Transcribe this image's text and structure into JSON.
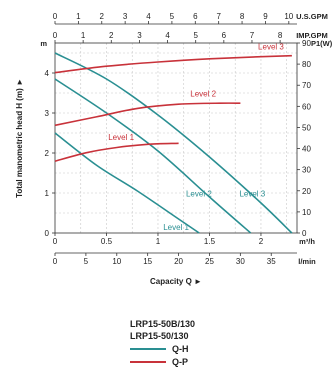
{
  "chart_data": {
    "type": "line",
    "axes": {
      "capacity_m3h": {
        "unit": "m³/h",
        "ticks": [
          "0",
          "0.5",
          "1",
          "1.5",
          "2"
        ],
        "range": [
          0,
          2.35
        ]
      },
      "capacity_lmin": {
        "unit": "l/min",
        "ticks": [
          "0",
          "5",
          "10",
          "15",
          "20",
          "25",
          "30",
          "35"
        ],
        "range": [
          0,
          39.17
        ]
      },
      "capacity_usgpm": {
        "unit": "U.S.GPM",
        "ticks": [
          "0",
          "1",
          "2",
          "3",
          "4",
          "5",
          "6",
          "7",
          "8",
          "9",
          "10"
        ],
        "range": [
          0,
          10.35
        ]
      },
      "capacity_impgpm": {
        "unit": "IMP.GPM",
        "ticks": [
          "0",
          "1",
          "2",
          "3",
          "4",
          "5",
          "6",
          "7",
          "8"
        ],
        "range": [
          0,
          8.6
        ]
      },
      "head": {
        "unit": "m",
        "ticks": [
          "0",
          "1",
          "2",
          "3",
          "4"
        ],
        "range": [
          0,
          4.75
        ]
      },
      "power": {
        "unit": "P1(W)",
        "ticks": [
          "0",
          "10",
          "20",
          "30",
          "40",
          "50",
          "60",
          "70",
          "80",
          "90"
        ],
        "range": [
          0,
          90
        ]
      }
    },
    "xlabel": "Capacity Q ►",
    "ylabel": "Total manometric head H (m) ►",
    "series": [
      {
        "name": "Level 1",
        "kind": "Q-H",
        "x": [
          0,
          0.4,
          0.8,
          1.2,
          1.4
        ],
        "y": [
          2.5,
          1.7,
          1.05,
          0.35,
          0
        ]
      },
      {
        "name": "Level 2",
        "kind": "Q-H",
        "x": [
          0,
          0.5,
          1.0,
          1.5,
          1.9
        ],
        "y": [
          3.85,
          3.0,
          2.05,
          0.9,
          0
        ]
      },
      {
        "name": "Level 3",
        "kind": "Q-H",
        "x": [
          0,
          0.5,
          1.0,
          1.5,
          2.0,
          2.3
        ],
        "y": [
          4.5,
          3.85,
          2.95,
          1.9,
          0.75,
          0
        ]
      },
      {
        "name": "Level 1",
        "kind": "Q-P",
        "x": [
          0,
          0.3,
          0.6,
          0.9,
          1.2
        ],
        "y": [
          34,
          38,
          40.5,
          42,
          42.5
        ]
      },
      {
        "name": "Level 2",
        "kind": "Q-P",
        "x": [
          0,
          0.4,
          0.8,
          1.2,
          1.6,
          1.8
        ],
        "y": [
          51,
          55,
          59,
          61,
          61.5,
          61.5
        ]
      },
      {
        "name": "Level 3",
        "kind": "Q-P",
        "x": [
          0,
          0.5,
          1.0,
          1.5,
          2.0,
          2.3
        ],
        "y": [
          76,
          79,
          81,
          82.5,
          83.5,
          84
        ]
      }
    ],
    "grid": true,
    "colors": {
      "Q-H": "#2a8f92",
      "Q-P": "#c8323a"
    }
  },
  "legend": {
    "models": [
      "LRP15-50B/130",
      "LRP15-50/130"
    ],
    "items": [
      {
        "label": "Q-H",
        "color": "#2a8f92"
      },
      {
        "label": "Q-P",
        "color": "#c8323a"
      }
    ]
  }
}
